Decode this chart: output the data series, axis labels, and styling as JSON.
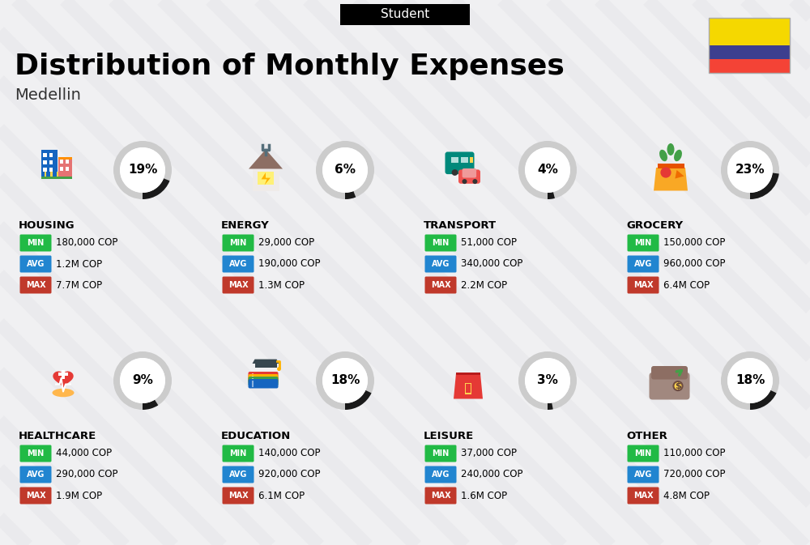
{
  "title": "Distribution of Monthly Expenses",
  "subtitle": "Student",
  "city": "Medellin",
  "bg_color": "#f0f0f2",
  "categories": [
    {
      "name": "HOUSING",
      "pct": 19,
      "min": "180,000 COP",
      "avg": "1.2M COP",
      "max": "7.7M COP",
      "col": 0,
      "row": 0
    },
    {
      "name": "ENERGY",
      "pct": 6,
      "min": "29,000 COP",
      "avg": "190,000 COP",
      "max": "1.3M COP",
      "col": 1,
      "row": 0
    },
    {
      "name": "TRANSPORT",
      "pct": 4,
      "min": "51,000 COP",
      "avg": "340,000 COP",
      "max": "2.2M COP",
      "col": 2,
      "row": 0
    },
    {
      "name": "GROCERY",
      "pct": 23,
      "min": "150,000 COP",
      "avg": "960,000 COP",
      "max": "6.4M COP",
      "col": 3,
      "row": 0
    },
    {
      "name": "HEALTHCARE",
      "pct": 9,
      "min": "44,000 COP",
      "avg": "290,000 COP",
      "max": "1.9M COP",
      "col": 0,
      "row": 1
    },
    {
      "name": "EDUCATION",
      "pct": 18,
      "min": "140,000 COP",
      "avg": "920,000 COP",
      "max": "6.1M COP",
      "col": 1,
      "row": 1
    },
    {
      "name": "LEISURE",
      "pct": 3,
      "min": "37,000 COP",
      "avg": "240,000 COP",
      "max": "1.6M COP",
      "col": 2,
      "row": 1
    },
    {
      "name": "OTHER",
      "pct": 18,
      "min": "110,000 COP",
      "avg": "720,000 COP",
      "max": "4.8M COP",
      "col": 3,
      "row": 1
    }
  ],
  "min_color": "#21ba45",
  "avg_color": "#2185d0",
  "max_color": "#c0392b",
  "arc_dark": "#1a1a1a",
  "arc_light": "#cccccc",
  "flag_yellow": "#f5d800",
  "flag_blue": "#3c3f8f",
  "flag_red": "#f44336",
  "diag_color": "#e8e8ec"
}
